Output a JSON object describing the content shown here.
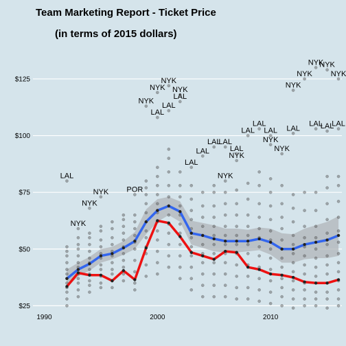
{
  "chart_data": {
    "type": "scatter",
    "title": "Team Marketing Report - Ticket Price",
    "subtitle": "(in terms of 2015 dollars)",
    "xlabel": "",
    "ylabel": "",
    "xlim": [
      1989,
      2016.3
    ],
    "ylim": [
      23,
      138
    ],
    "x_ticks": [
      {
        "value": 1990,
        "label": "1990"
      },
      {
        "value": 2000,
        "label": "2000"
      },
      {
        "value": 2010,
        "label": "2010"
      }
    ],
    "y_ticks": [
      {
        "value": 25,
        "label": "$25"
      },
      {
        "value": 50,
        "label": "$50"
      },
      {
        "value": 75,
        "label": "$75"
      },
      {
        "value": 100,
        "label": "$100"
      },
      {
        "value": 125,
        "label": "$125"
      }
    ],
    "grid": true,
    "legend": "none",
    "colors": {
      "background": "#d5e4eb",
      "grid": "#ffffff",
      "points": "#555555",
      "mean_line": "#3366ee",
      "median_line": "#ee1111",
      "confidence_band": "#b0b6ba"
    },
    "series": [
      {
        "name": "",
        "role": "mean",
        "x": [
          1992,
          1993,
          1994,
          1995,
          1996,
          1997,
          1998,
          1999,
          2000,
          2001,
          2002,
          2003,
          2004,
          2005,
          2006,
          2007,
          2008,
          2009,
          2010,
          2011,
          2012,
          2013,
          2014,
          2015,
          2016
        ],
        "values": [
          37,
          41,
          43.5,
          47,
          48,
          50.5,
          53.5,
          62,
          67,
          69,
          66.5,
          57,
          56,
          54.5,
          53.5,
          53.5,
          53.5,
          54.5,
          53,
          50,
          50,
          52,
          53,
          54,
          56
        ]
      },
      {
        "name": "",
        "role": "median",
        "x": [
          1992,
          1993,
          1994,
          1995,
          1996,
          1997,
          1998,
          1999,
          2000,
          2001,
          2002,
          2003,
          2004,
          2005,
          2006,
          2007,
          2008,
          2009,
          2010,
          2011,
          2012,
          2013,
          2014,
          2015,
          2016
        ],
        "values": [
          33.5,
          39.5,
          38.5,
          38.5,
          36,
          40.5,
          36.5,
          50.5,
          62.5,
          61.5,
          55.5,
          48.5,
          47,
          45.5,
          49,
          48.5,
          42,
          41,
          39,
          38.5,
          37.5,
          35.5,
          35,
          35,
          36.5
        ]
      },
      {
        "name": "",
        "role": "confidence_band",
        "x": [
          1992,
          1993,
          1994,
          1995,
          1996,
          1997,
          1998,
          1999,
          2000,
          2001,
          2002,
          2003,
          2004,
          2005,
          2006,
          2007,
          2008,
          2009,
          2010,
          2011,
          2012,
          2013,
          2014,
          2015,
          2016
        ],
        "lower": [
          33,
          38,
          40.5,
          44,
          45.5,
          47.5,
          50,
          56.5,
          62,
          65,
          62,
          52,
          50.5,
          49,
          48.5,
          48.5,
          49,
          49.5,
          47.5,
          44,
          44,
          45.5,
          46,
          46,
          47
        ],
        "upper": [
          41,
          44,
          46.5,
          50,
          51,
          53.5,
          57.5,
          67.5,
          72,
          73,
          71,
          62.5,
          61.5,
          60.5,
          59,
          59,
          58.5,
          59.5,
          59,
          57,
          56.5,
          59,
          60.5,
          62,
          64.5
        ]
      }
    ],
    "points": [
      [
        1992,
        25
      ],
      [
        1992,
        28
      ],
      [
        1992,
        31
      ],
      [
        1992,
        33
      ],
      [
        1992,
        35
      ],
      [
        1992,
        37
      ],
      [
        1992,
        39
      ],
      [
        1992,
        41
      ],
      [
        1992,
        44
      ],
      [
        1992,
        47
      ],
      [
        1992,
        49
      ],
      [
        1992,
        51
      ],
      [
        1993,
        29
      ],
      [
        1993,
        32
      ],
      [
        1993,
        35
      ],
      [
        1993,
        37
      ],
      [
        1993,
        39
      ],
      [
        1993,
        42
      ],
      [
        1993,
        44
      ],
      [
        1993,
        47
      ],
      [
        1993,
        50
      ],
      [
        1993,
        52
      ],
      [
        1993,
        55
      ],
      [
        1994,
        31
      ],
      [
        1994,
        34
      ],
      [
        1994,
        36
      ],
      [
        1994,
        39
      ],
      [
        1994,
        41
      ],
      [
        1994,
        44
      ],
      [
        1994,
        46
      ],
      [
        1994,
        49
      ],
      [
        1994,
        52
      ],
      [
        1994,
        55
      ],
      [
        1994,
        57
      ],
      [
        1995,
        33
      ],
      [
        1995,
        35
      ],
      [
        1995,
        38
      ],
      [
        1995,
        41
      ],
      [
        1995,
        43
      ],
      [
        1995,
        46
      ],
      [
        1995,
        48
      ],
      [
        1995,
        51
      ],
      [
        1995,
        54
      ],
      [
        1995,
        58
      ],
      [
        1995,
        60
      ],
      [
        1996,
        33
      ],
      [
        1996,
        36
      ],
      [
        1996,
        39
      ],
      [
        1996,
        41
      ],
      [
        1996,
        44
      ],
      [
        1996,
        47
      ],
      [
        1996,
        49
      ],
      [
        1996,
        52
      ],
      [
        1996,
        55
      ],
      [
        1996,
        59
      ],
      [
        1996,
        62
      ],
      [
        1997,
        36
      ],
      [
        1997,
        39
      ],
      [
        1997,
        42
      ],
      [
        1997,
        45
      ],
      [
        1997,
        48
      ],
      [
        1997,
        51
      ],
      [
        1997,
        54
      ],
      [
        1997,
        57
      ],
      [
        1997,
        60
      ],
      [
        1997,
        63
      ],
      [
        1997,
        65
      ],
      [
        1998,
        32
      ],
      [
        1998,
        35
      ],
      [
        1998,
        40
      ],
      [
        1998,
        45
      ],
      [
        1998,
        50
      ],
      [
        1998,
        53
      ],
      [
        1998,
        56
      ],
      [
        1998,
        59
      ],
      [
        1998,
        62
      ],
      [
        1998,
        65
      ],
      [
        1999,
        38
      ],
      [
        1999,
        43
      ],
      [
        1999,
        48
      ],
      [
        1999,
        51
      ],
      [
        1999,
        55
      ],
      [
        1999,
        58
      ],
      [
        1999,
        62
      ],
      [
        1999,
        66
      ],
      [
        1999,
        70
      ],
      [
        1999,
        74
      ],
      [
        1999,
        77
      ],
      [
        1999,
        80
      ],
      [
        2000,
        39
      ],
      [
        2000,
        44
      ],
      [
        2000,
        49
      ],
      [
        2000,
        54
      ],
      [
        2000,
        58
      ],
      [
        2000,
        62
      ],
      [
        2000,
        66
      ],
      [
        2000,
        70
      ],
      [
        2000,
        74
      ],
      [
        2000,
        78
      ],
      [
        2000,
        82
      ],
      [
        2000,
        86
      ],
      [
        2001,
        42
      ],
      [
        2001,
        47
      ],
      [
        2001,
        52
      ],
      [
        2001,
        57
      ],
      [
        2001,
        61
      ],
      [
        2001,
        65
      ],
      [
        2001,
        69
      ],
      [
        2001,
        73
      ],
      [
        2001,
        78
      ],
      [
        2001,
        84
      ],
      [
        2001,
        90
      ],
      [
        2001,
        94
      ],
      [
        2002,
        37
      ],
      [
        2002,
        42
      ],
      [
        2002,
        47
      ],
      [
        2002,
        52
      ],
      [
        2002,
        57
      ],
      [
        2002,
        61
      ],
      [
        2002,
        65
      ],
      [
        2002,
        69
      ],
      [
        2002,
        73
      ],
      [
        2002,
        78
      ],
      [
        2002,
        84
      ],
      [
        2003,
        32
      ],
      [
        2003,
        37
      ],
      [
        2003,
        42
      ],
      [
        2003,
        47
      ],
      [
        2003,
        51
      ],
      [
        2003,
        55
      ],
      [
        2003,
        59
      ],
      [
        2003,
        63
      ],
      [
        2003,
        67
      ],
      [
        2003,
        72
      ],
      [
        2003,
        78
      ],
      [
        2004,
        29
      ],
      [
        2004,
        34
      ],
      [
        2004,
        39
      ],
      [
        2004,
        44
      ],
      [
        2004,
        48
      ],
      [
        2004,
        52
      ],
      [
        2004,
        56
      ],
      [
        2004,
        60
      ],
      [
        2004,
        64
      ],
      [
        2004,
        69
      ],
      [
        2004,
        75
      ],
      [
        2005,
        29
      ],
      [
        2005,
        34
      ],
      [
        2005,
        39
      ],
      [
        2005,
        44
      ],
      [
        2005,
        48
      ],
      [
        2005,
        52
      ],
      [
        2005,
        56
      ],
      [
        2005,
        60
      ],
      [
        2005,
        64
      ],
      [
        2005,
        69
      ],
      [
        2005,
        75
      ],
      [
        2005,
        78
      ],
      [
        2006,
        29
      ],
      [
        2006,
        34
      ],
      [
        2006,
        39
      ],
      [
        2006,
        44
      ],
      [
        2006,
        48
      ],
      [
        2006,
        52
      ],
      [
        2006,
        56
      ],
      [
        2006,
        60
      ],
      [
        2006,
        65
      ],
      [
        2006,
        70
      ],
      [
        2006,
        75
      ],
      [
        2007,
        28
      ],
      [
        2007,
        33
      ],
      [
        2007,
        38
      ],
      [
        2007,
        43
      ],
      [
        2007,
        48
      ],
      [
        2007,
        52
      ],
      [
        2007,
        56
      ],
      [
        2007,
        60
      ],
      [
        2007,
        65
      ],
      [
        2007,
        70
      ],
      [
        2007,
        76
      ],
      [
        2008,
        28
      ],
      [
        2008,
        33
      ],
      [
        2008,
        38
      ],
      [
        2008,
        43
      ],
      [
        2008,
        48
      ],
      [
        2008,
        52
      ],
      [
        2008,
        56
      ],
      [
        2008,
        60
      ],
      [
        2008,
        65
      ],
      [
        2008,
        72
      ],
      [
        2008,
        79
      ],
      [
        2009,
        27
      ],
      [
        2009,
        32
      ],
      [
        2009,
        37
      ],
      [
        2009,
        42
      ],
      [
        2009,
        47
      ],
      [
        2009,
        51
      ],
      [
        2009,
        55
      ],
      [
        2009,
        59
      ],
      [
        2009,
        64
      ],
      [
        2009,
        70
      ],
      [
        2009,
        78
      ],
      [
        2009,
        84
      ],
      [
        2010,
        26
      ],
      [
        2010,
        31
      ],
      [
        2010,
        36
      ],
      [
        2010,
        41
      ],
      [
        2010,
        46
      ],
      [
        2010,
        50
      ],
      [
        2010,
        54
      ],
      [
        2010,
        58
      ],
      [
        2010,
        63
      ],
      [
        2010,
        69
      ],
      [
        2010,
        75
      ],
      [
        2010,
        81
      ],
      [
        2011,
        25
      ],
      [
        2011,
        29
      ],
      [
        2011,
        33
      ],
      [
        2011,
        37
      ],
      [
        2011,
        42
      ],
      [
        2011,
        46
      ],
      [
        2011,
        50
      ],
      [
        2011,
        54
      ],
      [
        2011,
        59
      ],
      [
        2011,
        64
      ],
      [
        2011,
        70
      ],
      [
        2011,
        78
      ],
      [
        2012,
        24
      ],
      [
        2012,
        28
      ],
      [
        2012,
        32
      ],
      [
        2012,
        36
      ],
      [
        2012,
        40
      ],
      [
        2012,
        44
      ],
      [
        2012,
        48
      ],
      [
        2012,
        52
      ],
      [
        2012,
        56
      ],
      [
        2012,
        62
      ],
      [
        2012,
        68
      ],
      [
        2012,
        74
      ],
      [
        2013,
        25
      ],
      [
        2013,
        28
      ],
      [
        2013,
        32
      ],
      [
        2013,
        35
      ],
      [
        2013,
        39
      ],
      [
        2013,
        43
      ],
      [
        2013,
        47
      ],
      [
        2013,
        51
      ],
      [
        2013,
        55
      ],
      [
        2013,
        60
      ],
      [
        2013,
        67
      ],
      [
        2013,
        75
      ],
      [
        2014,
        25
      ],
      [
        2014,
        28
      ],
      [
        2014,
        31
      ],
      [
        2014,
        35
      ],
      [
        2014,
        38
      ],
      [
        2014,
        42
      ],
      [
        2014,
        46
      ],
      [
        2014,
        50
      ],
      [
        2014,
        55
      ],
      [
        2014,
        60
      ],
      [
        2014,
        67
      ],
      [
        2014,
        75
      ],
      [
        2015,
        24
      ],
      [
        2015,
        28
      ],
      [
        2015,
        31
      ],
      [
        2015,
        35
      ],
      [
        2015,
        39
      ],
      [
        2015,
        43
      ],
      [
        2015,
        47
      ],
      [
        2015,
        52
      ],
      [
        2015,
        57
      ],
      [
        2015,
        63
      ],
      [
        2015,
        70
      ],
      [
        2015,
        77
      ],
      [
        2015,
        82
      ],
      [
        2016,
        25
      ],
      [
        2016,
        28
      ],
      [
        2016,
        32
      ],
      [
        2016,
        36
      ],
      [
        2016,
        40
      ],
      [
        2016,
        44
      ],
      [
        2016,
        48
      ],
      [
        2016,
        53
      ],
      [
        2016,
        58
      ],
      [
        2016,
        64
      ],
      [
        2016,
        71
      ],
      [
        2016,
        78
      ],
      [
        2016,
        82
      ]
    ],
    "annotations": [
      {
        "label": "LAL",
        "x": 1992,
        "y": 80
      },
      {
        "label": "NYK",
        "x": 1993,
        "y": 59
      },
      {
        "label": "NYK",
        "x": 1994,
        "y": 68
      },
      {
        "label": "NYK",
        "x": 1995,
        "y": 73
      },
      {
        "label": "POR",
        "x": 1998,
        "y": 74
      },
      {
        "label": "NYK",
        "x": 1999,
        "y": 113
      },
      {
        "label": "NYK",
        "x": 2000,
        "y": 119
      },
      {
        "label": "LAL",
        "x": 2000,
        "y": 108
      },
      {
        "label": "LAL",
        "x": 2001,
        "y": 111
      },
      {
        "label": "NYK",
        "x": 2001,
        "y": 122
      },
      {
        "label": "NYK",
        "x": 2002,
        "y": 118
      },
      {
        "label": "LAL",
        "x": 2002,
        "y": 115
      },
      {
        "label": "LAL",
        "x": 2003,
        "y": 86
      },
      {
        "label": "LAL",
        "x": 2004,
        "y": 91
      },
      {
        "label": "LAL",
        "x": 2005,
        "y": 95
      },
      {
        "label": "LAL",
        "x": 2006,
        "y": 95
      },
      {
        "label": "NYK",
        "x": 2007,
        "y": 89
      },
      {
        "label": "LAL",
        "x": 2007,
        "y": 92
      },
      {
        "label": "NYK",
        "x": 2006,
        "y": 80
      },
      {
        "label": "LAL",
        "x": 2008,
        "y": 100
      },
      {
        "label": "LAL",
        "x": 2009,
        "y": 103
      },
      {
        "label": "NYK",
        "x": 2010,
        "y": 96
      },
      {
        "label": "LAL",
        "x": 2010,
        "y": 100
      },
      {
        "label": "NYK",
        "x": 2011,
        "y": 92
      },
      {
        "label": "LAL",
        "x": 2012,
        "y": 101
      },
      {
        "label": "NYK",
        "x": 2012,
        "y": 120
      },
      {
        "label": "NYK",
        "x": 2013,
        "y": 125
      },
      {
        "label": "NYK",
        "x": 2014,
        "y": 130
      },
      {
        "label": "LAL",
        "x": 2014,
        "y": 103
      },
      {
        "label": "NYK",
        "x": 2015,
        "y": 129
      },
      {
        "label": "NYK",
        "x": 2016,
        "y": 125
      },
      {
        "label": "LAL",
        "x": 2015,
        "y": 102
      },
      {
        "label": "LAL",
        "x": 2016,
        "y": 103
      }
    ]
  }
}
